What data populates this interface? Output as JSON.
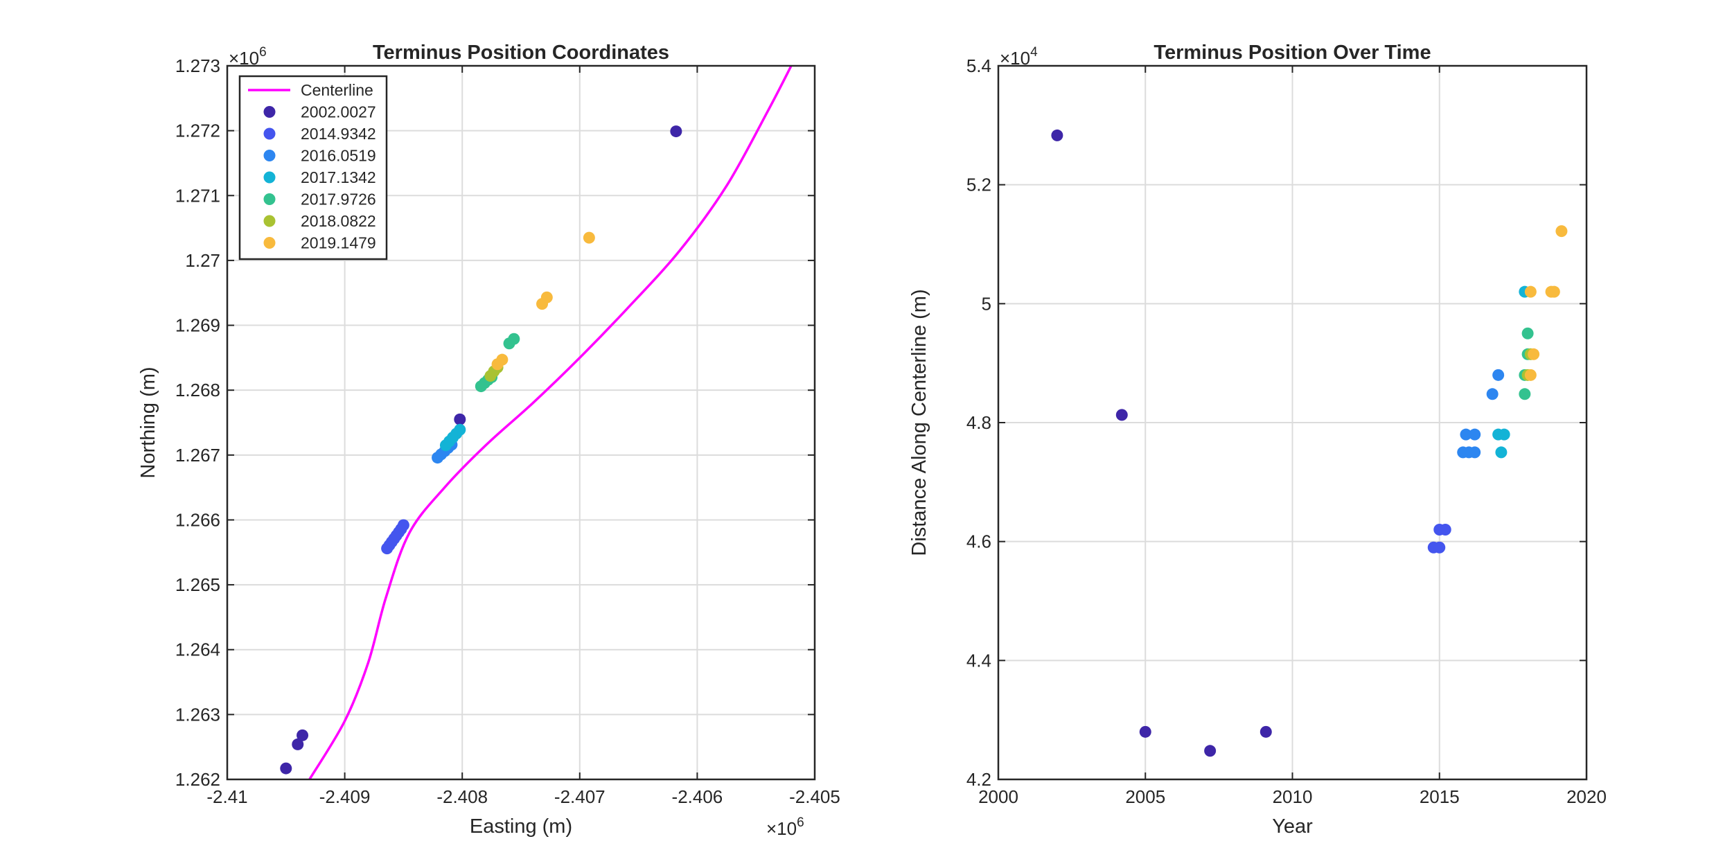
{
  "chart_data": [
    {
      "type": "scatter",
      "title": "Terminus Position Coordinates",
      "xlabel": "Easting (m)",
      "ylabel": "Northing (m)",
      "xlim": [
        -2410000,
        -2405000
      ],
      "ylim": [
        1262000,
        1273000
      ],
      "x_ticks": [
        -2410000,
        -2409000,
        -2408000,
        -2407000,
        -2406000,
        -2405000
      ],
      "x_tick_labels": [
        "-2.41",
        "-2.409",
        "-2.408",
        "-2.407",
        "-2.406",
        "-2.405"
      ],
      "y_ticks": [
        1262000,
        1263000,
        1264000,
        1265000,
        1266000,
        1267000,
        1268000,
        1269000,
        1270000,
        1271000,
        1272000,
        1273000
      ],
      "y_tick_labels": [
        "1.262",
        "1.263",
        "1.264",
        "1.265",
        "1.266",
        "1.267",
        "1.268",
        "1.269",
        "1.27",
        "1.271",
        "1.272",
        "1.273"
      ],
      "x_multiplier": {
        "base": "×10",
        "exp": "6"
      },
      "y_multiplier": {
        "base": "×10",
        "exp": "6"
      },
      "grid": true,
      "legend": {
        "placement": "top-left",
        "entries": [
          {
            "label": "Centerline",
            "marker": "line",
            "color": "#FF00FF"
          },
          {
            "label": "2002.0027",
            "marker": "dot",
            "color": "#3E26A8"
          },
          {
            "label": "2014.9342",
            "marker": "dot",
            "color": "#4455EE"
          },
          {
            "label": "2016.0519",
            "marker": "dot",
            "color": "#2D86F0"
          },
          {
            "label": "2017.1342",
            "marker": "dot",
            "color": "#13B3D6"
          },
          {
            "label": "2017.9726",
            "marker": "dot",
            "color": "#33C28F"
          },
          {
            "label": "2018.0822",
            "marker": "dot",
            "color": "#A9C232"
          },
          {
            "label": "2019.1479",
            "marker": "dot",
            "color": "#F8BA3D"
          }
        ]
      },
      "centerline": {
        "color": "#FF00FF",
        "points": [
          [
            -2409300,
            1262000
          ],
          [
            -2409000,
            1262900
          ],
          [
            -2408800,
            1263800
          ],
          [
            -2408650,
            1264800
          ],
          [
            -2408450,
            1265800
          ],
          [
            -2408150,
            1266500
          ],
          [
            -2407800,
            1267150
          ],
          [
            -2407400,
            1267800
          ],
          [
            -2407000,
            1268500
          ],
          [
            -2406600,
            1269250
          ],
          [
            -2406150,
            1270150
          ],
          [
            -2405750,
            1271150
          ],
          [
            -2405400,
            1272300
          ],
          [
            -2405200,
            1273000
          ]
        ]
      },
      "series": [
        {
          "color": "#3E26A8",
          "points": [
            [
              -2406180,
              1271990
            ],
            [
              -2408020,
              1267550
            ],
            [
              -2409360,
              1262680
            ],
            [
              -2409400,
              1262540
            ],
            [
              -2409500,
              1262170
            ]
          ]
        },
        {
          "color": "#4455EE",
          "points": [
            [
              -2408640,
              1265560
            ],
            [
              -2408620,
              1265610
            ],
            [
              -2408600,
              1265660
            ],
            [
              -2408580,
              1265710
            ],
            [
              -2408560,
              1265760
            ],
            [
              -2408540,
              1265810
            ],
            [
              -2408520,
              1265860
            ],
            [
              -2408500,
              1265920
            ]
          ]
        },
        {
          "color": "#2D86F0",
          "points": [
            [
              -2408210,
              1266960
            ],
            [
              -2408180,
              1267010
            ],
            [
              -2408150,
              1267060
            ],
            [
              -2408120,
              1267110
            ],
            [
              -2408090,
              1267160
            ]
          ]
        },
        {
          "color": "#13B3D6",
          "points": [
            [
              -2408140,
              1267150
            ],
            [
              -2408110,
              1267210
            ],
            [
              -2408080,
              1267270
            ],
            [
              -2408050,
              1267330
            ],
            [
              -2408020,
              1267390
            ]
          ]
        },
        {
          "color": "#33C28F",
          "points": [
            [
              -2407840,
              1268060
            ],
            [
              -2407810,
              1268110
            ],
            [
              -2407780,
              1268160
            ],
            [
              -2407750,
              1268200
            ],
            [
              -2407600,
              1268720
            ],
            [
              -2407560,
              1268790
            ]
          ]
        },
        {
          "color": "#A9C232",
          "points": [
            [
              -2407760,
              1268220
            ],
            [
              -2407730,
              1268290
            ],
            [
              -2407700,
              1268350
            ]
          ]
        },
        {
          "color": "#F8BA3D",
          "points": [
            [
              -2407700,
              1268400
            ],
            [
              -2407660,
              1268470
            ],
            [
              -2407320,
              1269330
            ],
            [
              -2407280,
              1269430
            ],
            [
              -2406920,
              1270350
            ]
          ]
        }
      ]
    },
    {
      "type": "scatter",
      "title": "Terminus Position Over Time",
      "xlabel": "Year",
      "ylabel": "Distance Along Centerline (m)",
      "xlim": [
        2000,
        2020
      ],
      "ylim": [
        42000,
        54000
      ],
      "x_ticks": [
        2000,
        2005,
        2010,
        2015,
        2020
      ],
      "x_tick_labels": [
        "2000",
        "2005",
        "2010",
        "2015",
        "2020"
      ],
      "y_ticks": [
        42000,
        44000,
        46000,
        48000,
        50000,
        52000,
        54000
      ],
      "y_tick_labels": [
        "4.2",
        "4.4",
        "4.6",
        "4.8",
        "5",
        "5.2",
        "5.4"
      ],
      "y_multiplier": {
        "base": "×10",
        "exp": "4"
      },
      "grid": true,
      "series": [
        {
          "color": "#3E26A8",
          "points": [
            [
              2002.0,
              52830
            ],
            [
              2004.2,
              48130
            ],
            [
              2005.0,
              42800
            ],
            [
              2007.2,
              42480
            ],
            [
              2009.1,
              42800
            ]
          ]
        },
        {
          "color": "#4455EE",
          "points": [
            [
              2014.8,
              45900
            ],
            [
              2015.0,
              45900
            ],
            [
              2015.0,
              46200
            ],
            [
              2015.2,
              46200
            ]
          ]
        },
        {
          "color": "#2D86F0",
          "points": [
            [
              2015.8,
              47500
            ],
            [
              2016.0,
              47500
            ],
            [
              2016.2,
              47500
            ],
            [
              2015.9,
              47800
            ],
            [
              2016.2,
              47800
            ],
            [
              2016.8,
              48480
            ],
            [
              2017.0,
              48800
            ]
          ]
        },
        {
          "color": "#13B3D6",
          "points": [
            [
              2017.0,
              47800
            ],
            [
              2017.2,
              47800
            ],
            [
              2017.1,
              47500
            ],
            [
              2017.9,
              50200
            ]
          ]
        },
        {
          "color": "#33C28F",
          "points": [
            [
              2017.9,
              48480
            ],
            [
              2017.9,
              48800
            ],
            [
              2018.0,
              49500
            ],
            [
              2018.0,
              49150
            ]
          ]
        },
        {
          "color": "#A9C232",
          "points": [
            [
              2018.0,
              48800
            ],
            [
              2018.1,
              49150
            ]
          ]
        },
        {
          "color": "#F8BA3D",
          "points": [
            [
              2018.1,
              48800
            ],
            [
              2018.2,
              49150
            ],
            [
              2018.1,
              50200
            ],
            [
              2018.8,
              50200
            ],
            [
              2018.9,
              50200
            ],
            [
              2019.15,
              51220
            ]
          ]
        }
      ]
    }
  ]
}
